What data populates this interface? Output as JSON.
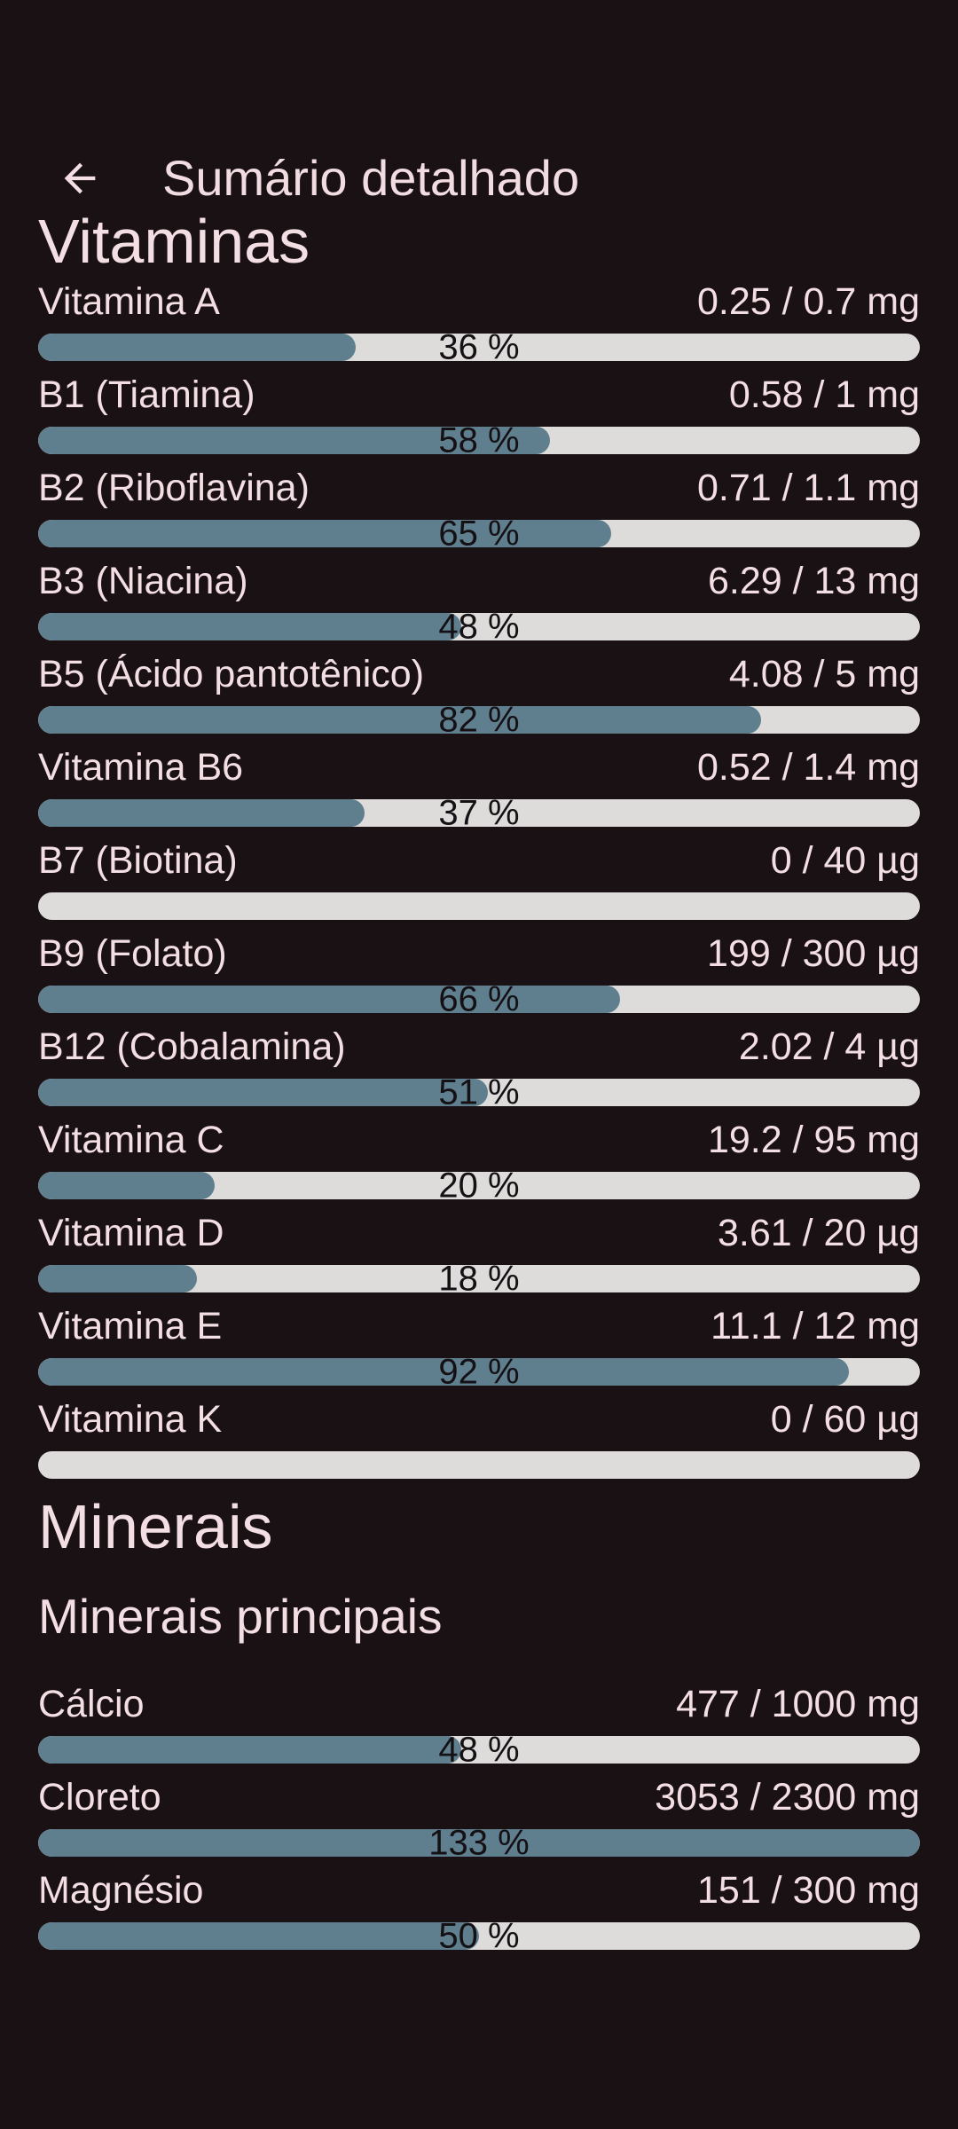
{
  "appbar": {
    "back_icon": "arrow-back",
    "title": "Sumário detalhado"
  },
  "colors": {
    "background": "#1a1114",
    "text": "#f3dfe3",
    "bar_fill": "#5f7f8e",
    "bar_track": "#dddcda",
    "percent_text": "#141014"
  },
  "sections": [
    {
      "title": "Vitaminas",
      "items": [
        {
          "label": "Vitamina A",
          "value": "0.25 / 0.7 mg",
          "percent": 36,
          "percent_label": "36 %"
        },
        {
          "label": "B1 (Tiamina)",
          "value": "0.58 / 1 mg",
          "percent": 58,
          "percent_label": "58 %"
        },
        {
          "label": "B2 (Riboflavina)",
          "value": "0.71 / 1.1 mg",
          "percent": 65,
          "percent_label": "65 %"
        },
        {
          "label": "B3 (Niacina)",
          "value": "6.29 / 13 mg",
          "percent": 48,
          "percent_label": "48 %"
        },
        {
          "label": "B5 (Ácido pantotênico)",
          "value": "4.08 / 5 mg",
          "percent": 82,
          "percent_label": "82 %"
        },
        {
          "label": "Vitamina B6",
          "value": "0.52 / 1.4 mg",
          "percent": 37,
          "percent_label": "37 %"
        },
        {
          "label": "B7 (Biotina)",
          "value": "0 / 40 µg",
          "percent": 0,
          "percent_label": ""
        },
        {
          "label": "B9 (Folato)",
          "value": "199 / 300 µg",
          "percent": 66,
          "percent_label": "66 %"
        },
        {
          "label": "B12 (Cobalamina)",
          "value": "2.02 / 4 µg",
          "percent": 51,
          "percent_label": "51 %"
        },
        {
          "label": "Vitamina C",
          "value": "19.2 / 95 mg",
          "percent": 20,
          "percent_label": "20 %"
        },
        {
          "label": "Vitamina D",
          "value": "3.61 / 20 µg",
          "percent": 18,
          "percent_label": "18 %"
        },
        {
          "label": "Vitamina E",
          "value": "11.1 / 12 mg",
          "percent": 92,
          "percent_label": "92 %"
        },
        {
          "label": "Vitamina K",
          "value": "0 / 60 µg",
          "percent": 0,
          "percent_label": ""
        }
      ]
    },
    {
      "title": "Minerais",
      "subtitle": "Minerais principais",
      "items": [
        {
          "label": "Cálcio",
          "value": "477 / 1000 mg",
          "percent": 48,
          "percent_label": "48 %"
        },
        {
          "label": "Cloreto",
          "value": "3053 / 2300 mg",
          "percent": 133,
          "percent_label": "133 %"
        },
        {
          "label": "Magnésio",
          "value": "151 / 300 mg",
          "percent": 50,
          "percent_label": "50 %"
        }
      ]
    }
  ]
}
